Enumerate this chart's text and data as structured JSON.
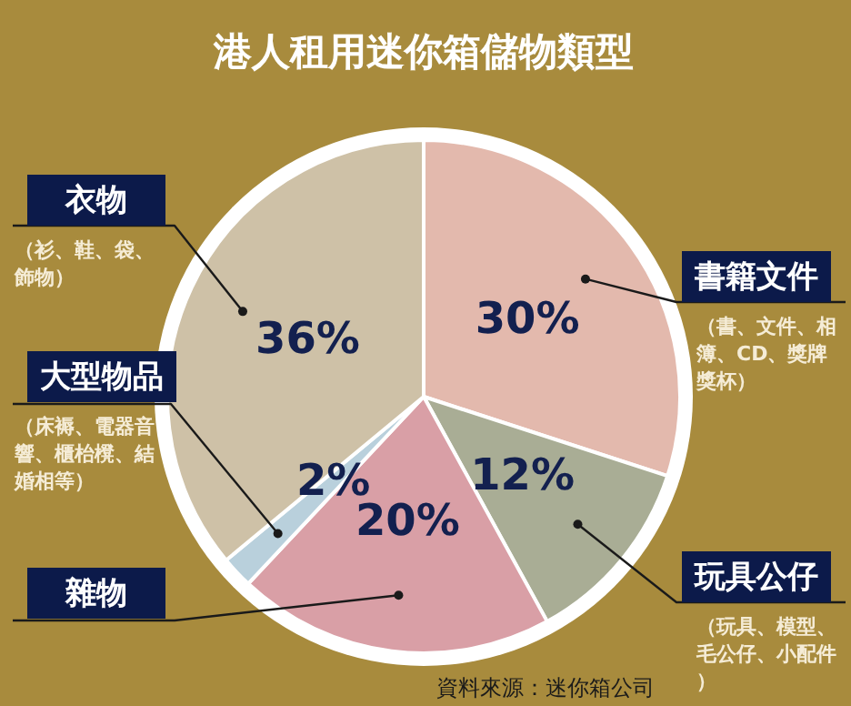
{
  "chart_data": {
    "type": "pie",
    "title": "港人租用迷你箱儲物類型",
    "categories": [
      "書籍文件",
      "玩具公仔",
      "雜物",
      "大型物品",
      "衣物"
    ],
    "values": [
      30,
      12,
      20,
      2,
      36
    ],
    "colors": [
      "#e3b9ad",
      "#a9ad95",
      "#d99fa6",
      "#b9d0dc",
      "#cec1a7"
    ],
    "value_labels": [
      "30%",
      "12%",
      "20%",
      "2%",
      "36%"
    ],
    "legend": false,
    "annotations": [
      "（書、文件、相簿、CD、獎牌獎杯）",
      "（玩具、模型、毛公仔、小配件）",
      "（床褥、電器音響、櫃枱櫈、結婚相等）",
      "（衫、鞋、袋、飾物）",
      "資料來源：迷你箱公司"
    ]
  }
}
